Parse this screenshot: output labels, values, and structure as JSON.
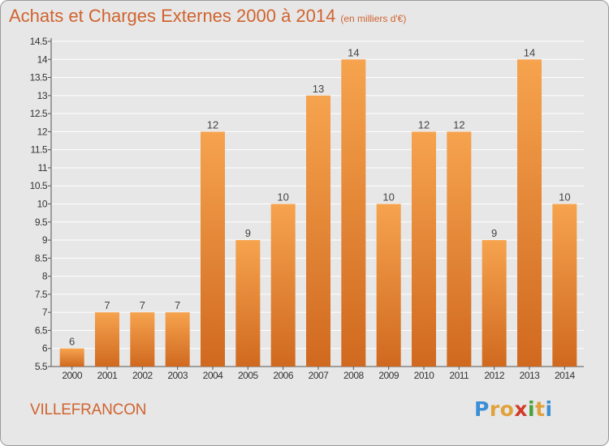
{
  "title": "Achats et Charges Externes 2000 à 2014",
  "unit": "(en milliers d'€)",
  "city": "VILLEFRANCON",
  "logo": {
    "text": "Proxiti",
    "letters": [
      {
        "ch": "P",
        "color": "#3a8fd6"
      },
      {
        "ch": "r",
        "color": "#e0a23a"
      },
      {
        "ch": "o",
        "color": "#e0a23a"
      },
      {
        "ch": "x",
        "color": "#d23a2a"
      },
      {
        "ch": "i",
        "color": "#4aa03a"
      },
      {
        "ch": "t",
        "color": "#e0a23a"
      },
      {
        "ch": "i",
        "color": "#3a8fd6"
      }
    ]
  },
  "colors": {
    "bar_top": "#f6a34e",
    "bar_bottom": "#d0691f",
    "accent": "#d0632f",
    "background": "#e7e7e7",
    "grid": "#ffffff"
  },
  "chart_data": {
    "type": "bar",
    "categories": [
      "2000",
      "2001",
      "2002",
      "2003",
      "2004",
      "2005",
      "2006",
      "2007",
      "2008",
      "2009",
      "2010",
      "2011",
      "2012",
      "2013",
      "2014"
    ],
    "values": [
      6,
      7,
      7,
      7,
      12,
      9,
      10,
      13,
      14,
      10,
      12,
      12,
      9,
      14,
      10
    ],
    "data_labels": [
      "6",
      "7",
      "7",
      "7",
      "12",
      "9",
      "10",
      "13",
      "14",
      "10",
      "12",
      "12",
      "9",
      "14",
      "10"
    ],
    "yticks": [
      "5.5",
      "6",
      "6.5",
      "7",
      "7.5",
      "8",
      "8.5",
      "9",
      "9.5",
      "10",
      "10.5",
      "11",
      "11.5",
      "12",
      "12.5",
      "13",
      "13.5",
      "14",
      "14.5"
    ],
    "ylim": [
      5.5,
      14.5
    ],
    "grid": true,
    "xlabel": "",
    "ylabel": ""
  }
}
